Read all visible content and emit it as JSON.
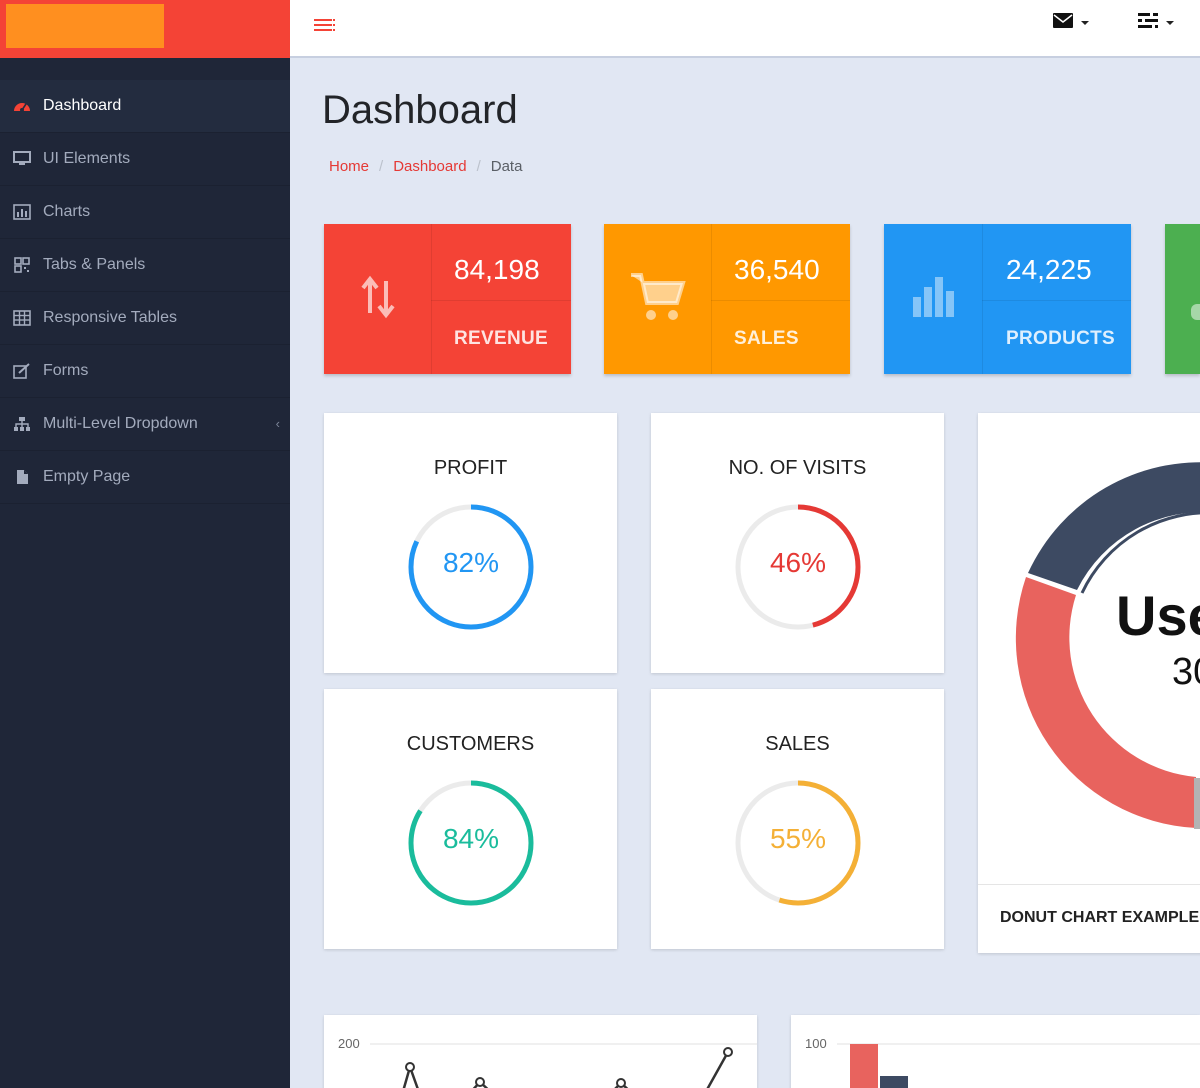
{
  "sidebar": {
    "items": [
      {
        "label": "Dashboard",
        "icon": "dashboard-icon",
        "active": true
      },
      {
        "label": "UI Elements",
        "icon": "desktop-icon"
      },
      {
        "label": "Charts",
        "icon": "bar-chart-icon"
      },
      {
        "label": "Tabs & Panels",
        "icon": "qrcode-icon"
      },
      {
        "label": "Responsive Tables",
        "icon": "table-icon"
      },
      {
        "label": "Forms",
        "icon": "edit-icon"
      },
      {
        "label": "Multi-Level Dropdown",
        "icon": "sitemap-icon",
        "caret": "‹"
      },
      {
        "label": "Empty Page",
        "icon": "file-icon"
      }
    ]
  },
  "header": {
    "title": "Dashboard",
    "breadcrumb": {
      "home": "Home",
      "section": "Dashboard",
      "current": "Data",
      "separator": "/"
    }
  },
  "colors": {
    "brand": "#f44336",
    "brand_logo": "#ff8f1f",
    "revenue": "#f44336",
    "sales": "#ff9800",
    "products": "#2196f3",
    "fourth": "#4caf50",
    "profit": "#2196f3",
    "visits": "#e53935",
    "customers": "#1abc9c",
    "sales_ring": "#f4b036",
    "donut_dark": "#3d4a62",
    "donut_red": "#e8635e"
  },
  "stats": [
    {
      "value": "84,198",
      "label": "REVENUE",
      "icon": "arrows-updown-icon"
    },
    {
      "value": "36,540",
      "label": "SALES",
      "icon": "shopping-cart-icon"
    },
    {
      "value": "24,225",
      "label": "PRODUCTS",
      "icon": "bar-chart-icon"
    }
  ],
  "progress": [
    {
      "title": "PROFIT",
      "percent": 82,
      "text": "82%"
    },
    {
      "title": "NO. OF VISITS",
      "percent": 46,
      "text": "46%"
    },
    {
      "title": "CUSTOMERS",
      "percent": 84,
      "text": "84%"
    },
    {
      "title": "SALES",
      "percent": 55,
      "text": "55%"
    }
  ],
  "donut": {
    "center_title": "Use",
    "center_value": "30",
    "footer": "DONUT CHART EXAMPLE"
  },
  "line_chart": {
    "tick": "200"
  },
  "bar_chart": {
    "tick": "100"
  }
}
